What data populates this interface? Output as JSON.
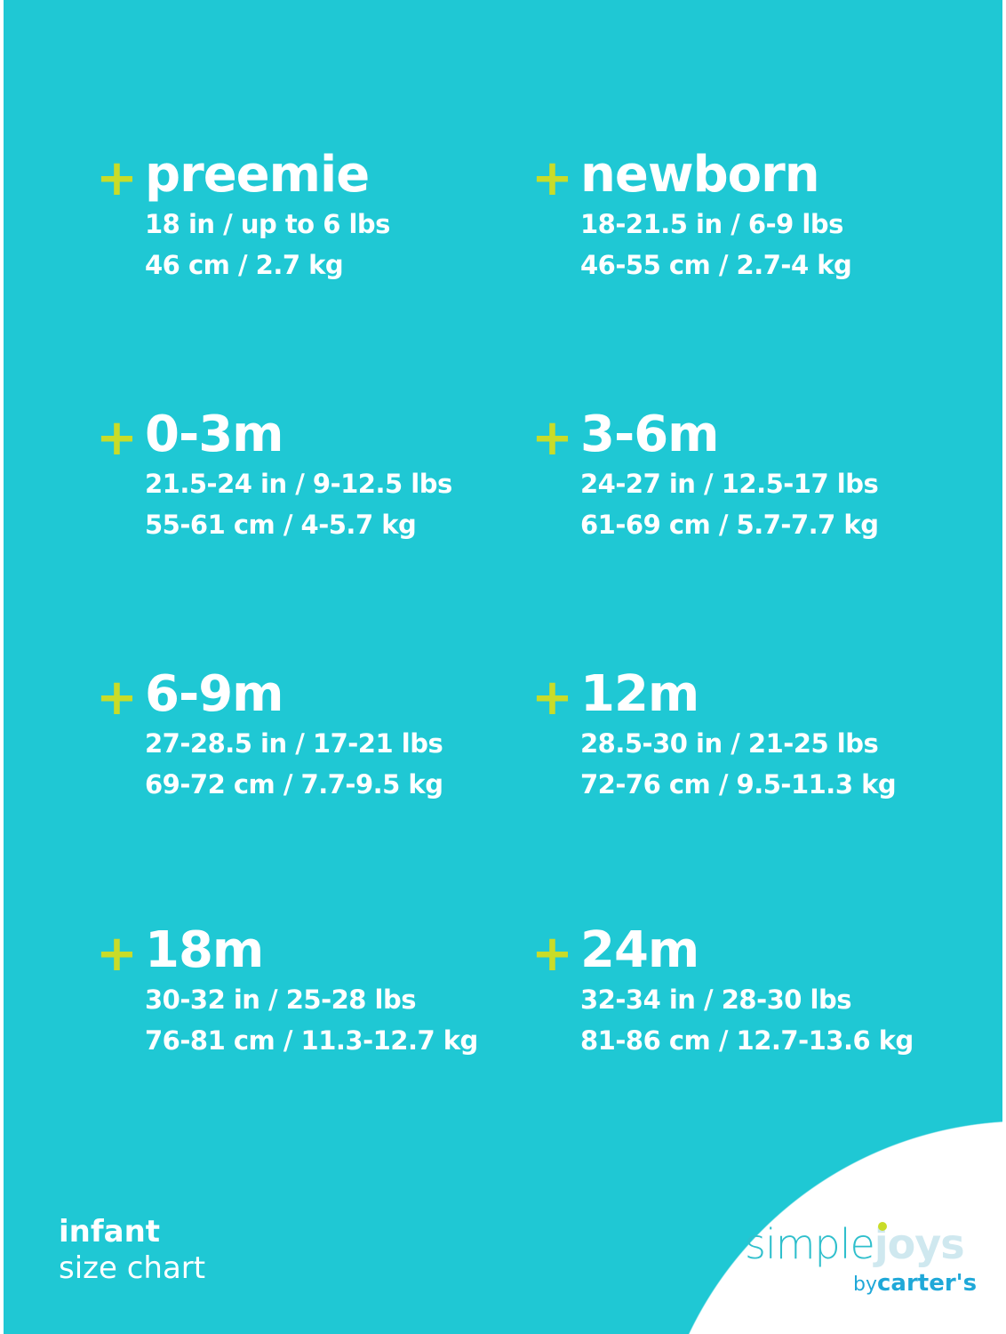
{
  "colors": {
    "background": "#1fc8d4",
    "plus": "#c9dc28",
    "text": "#ffffff"
  },
  "plus_symbol": "+",
  "sizes": [
    {
      "name": "preemie",
      "imperial": "18 in / up to 6 lbs",
      "metric": "46 cm / 2.7 kg"
    },
    {
      "name": "newborn",
      "imperial": "18-21.5 in / 6-9 lbs",
      "metric": "46-55 cm / 2.7-4 kg"
    },
    {
      "name": "0-3m",
      "imperial": "21.5-24 in / 9-12.5 lbs",
      "metric": "55-61 cm / 4-5.7 kg"
    },
    {
      "name": "3-6m",
      "imperial": "24-27 in / 12.5-17 lbs",
      "metric": "61-69 cm / 5.7-7.7 kg"
    },
    {
      "name": "6-9m",
      "imperial": "27-28.5 in / 17-21 lbs",
      "metric": "69-72 cm / 7.7-9.5 kg"
    },
    {
      "name": "12m",
      "imperial": "28.5-30 in / 21-25 lbs",
      "metric": "72-76 cm / 9.5-11.3 kg"
    },
    {
      "name": "18m",
      "imperial": "30-32 in / 25-28 lbs",
      "metric": "76-81 cm / 11.3-12.7 kg"
    },
    {
      "name": "24m",
      "imperial": "32-34 in / 28-30 lbs",
      "metric": "81-86 cm / 12.7-13.6 kg"
    }
  ],
  "footer": {
    "line1": "infant",
    "line2": "size chart"
  },
  "logo": {
    "word1": "simple",
    "word2": "joys",
    "by": "by",
    "brand": "carter's"
  }
}
